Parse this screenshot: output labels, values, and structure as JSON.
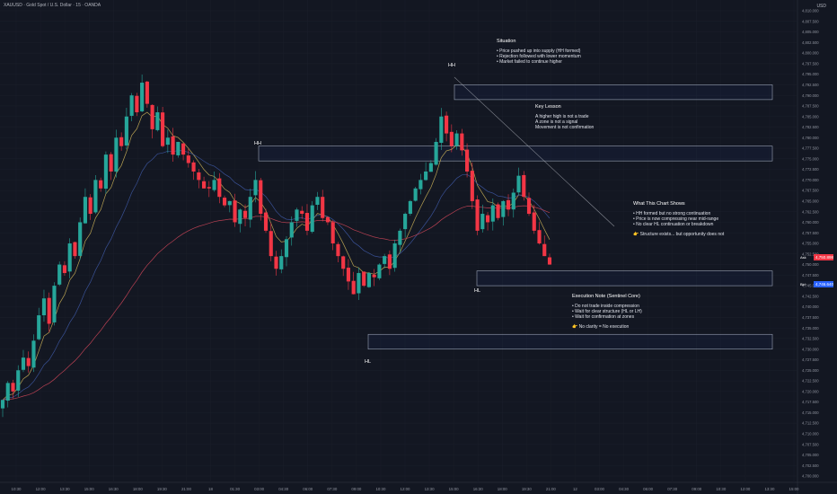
{
  "header": {
    "symbol_line": "XAUUSD · Gold Spot / U.S. Dollar · 15 · OANDA",
    "currency": "USD"
  },
  "chart_data": {
    "type": "candlestick",
    "title": "XAUUSD · Gold Spot / U.S. Dollar · 15 · OANDA",
    "y_axis": {
      "range": [
        4700,
        4810
      ],
      "tick_labels": [
        "4,810.000",
        "4,807.500",
        "4,805.000",
        "4,802.500",
        "4,800.000",
        "4,797.500",
        "4,795.000",
        "4,792.500",
        "4,790.000",
        "4,787.500",
        "4,785.000",
        "4,782.500",
        "4,780.000",
        "4,777.500",
        "4,775.000",
        "4,772.500",
        "4,770.000",
        "4,767.500",
        "4,765.000",
        "4,762.500",
        "4,760.000",
        "4,757.500",
        "4,755.000",
        "4,752.500",
        "4,750.000",
        "4,747.500",
        "4,745.000",
        "4,742.500",
        "4,740.000",
        "4,737.500",
        "4,735.000",
        "4,732.500",
        "4,730.000",
        "4,727.500",
        "4,725.000",
        "4,722.500",
        "4,720.000",
        "4,717.500",
        "4,715.000",
        "4,712.500",
        "4,710.000",
        "4,707.500",
        "4,705.000",
        "4,702.500",
        "4,700.000"
      ]
    },
    "x_axis": {
      "tick_labels": [
        "10:30",
        "12:00",
        "13:30",
        "15:00",
        "16:30",
        "18:00",
        "19:30",
        "21:00",
        "18",
        "01:30",
        "03:00",
        "04:30",
        "06:00",
        "07:30",
        "09:00",
        "10:30",
        "12:00",
        "13:30",
        "15:00",
        "16:30",
        "18:00",
        "19:30",
        "21:00",
        "12",
        "03:00",
        "04:30",
        "06:00",
        "07:30",
        "09:00",
        "10:30",
        "12:00",
        "13:30",
        "15:00"
      ]
    },
    "price_tags": [
      {
        "side": "Ask",
        "value": "4,750.898",
        "color": "#f23645"
      },
      {
        "side": "Bid",
        "value": "4,746.640",
        "color": "#2962ff"
      }
    ],
    "close_series": [
      4718,
      4722,
      4720,
      4725,
      4728,
      4726,
      4732,
      4738,
      4742,
      4736,
      4745,
      4750,
      4748,
      4755,
      4752,
      4760,
      4766,
      4762,
      4770,
      4768,
      4776,
      4772,
      4780,
      4778,
      4785,
      4790,
      4786,
      4793,
      4788,
      4782,
      4786,
      4778,
      4780,
      4776,
      4779,
      4776,
      4774,
      4772,
      4770,
      4768,
      4768,
      4770,
      4766,
      4764,
      4765,
      4760,
      4763,
      4761,
      4766,
      4770,
      4762,
      4758,
      4752,
      4749,
      4752,
      4756,
      4760,
      4763,
      4762,
      4758,
      4764,
      4766,
      4761,
      4760,
      4755,
      4752,
      4749,
      4746,
      4743,
      4748,
      4745,
      4748,
      4747,
      4750,
      4752,
      4749,
      4755,
      4758,
      4762,
      4765,
      4768,
      4770,
      4772,
      4774,
      4779,
      4785,
      4781,
      4778,
      4781,
      4777,
      4772,
      4765,
      4758,
      4762,
      4760,
      4764,
      4761,
      4765,
      4763,
      4767,
      4771,
      4766,
      4762,
      4758,
      4755,
      4752,
      4750
    ],
    "zones": [
      {
        "name": "supply-zone-top",
        "y1": 4789,
        "y2": 4792.5
      },
      {
        "name": "zone-mid-upper",
        "y1": 4774.5,
        "y2": 4778
      },
      {
        "name": "zone-mid-lower",
        "y1": 4745,
        "y2": 4748.5
      },
      {
        "name": "zone-bottom",
        "y1": 4730,
        "y2": 4733.5
      }
    ],
    "structure_labels": [
      "HH",
      "HH",
      "HL",
      "HL"
    ],
    "series": [
      {
        "name": "",
        "color": "#d4b95a"
      },
      {
        "name": "",
        "color": "#3f5aa8"
      },
      {
        "name": "",
        "color": "#d4485a"
      }
    ]
  },
  "notes": {
    "situation": {
      "title": "Situation",
      "lines": [
        "• Price pushed up into supply (HH formed)",
        "• Rejection followed with lower momentum",
        "• Market failed to continue higher"
      ]
    },
    "key_lesson": {
      "title": "Key Lesson",
      "lines": [
        "A higher high is not a trade",
        "A zone is not a signal",
        "Movement is not confirmation"
      ]
    },
    "what_shows": {
      "title": "What This Chart Shows",
      "lines": [
        "• HH formed but no strong continuation",
        "• Price is now compressing near mid-range",
        "• No clear HL continuation or breakdown"
      ],
      "footer": "👉 Structure exists... but opportunity does not"
    },
    "execution": {
      "title": "Execution Note (Sentinel Core)",
      "lines": [
        "• Do not trade inside compression",
        "• Wait for clear structure (HL or LH)",
        "• Wait for confirmation at zones"
      ],
      "footer": "👉 No clarity = No execution"
    }
  }
}
